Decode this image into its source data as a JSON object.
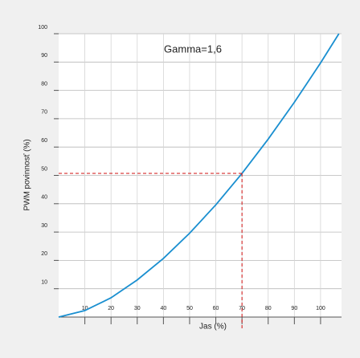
{
  "chart_data": {
    "type": "line",
    "title": "Gamma=1,6",
    "x_label": "Jas (%)",
    "y_label": "PWM povinnosť (%)",
    "x": [
      0,
      10,
      20,
      30,
      40,
      50,
      60,
      70,
      80,
      90,
      100,
      107
    ],
    "series": [
      {
        "name": "Gamma=1,6",
        "color": "#1a8fd0",
        "values": [
          0,
          2.3,
          6.8,
          13.1,
          20.7,
          29.6,
          39.6,
          50.7,
          62.8,
          75.8,
          89.7,
          100
        ]
      }
    ],
    "xlim": [
      0,
      108
    ],
    "ylim": [
      0,
      100
    ],
    "xticks": [
      10,
      20,
      30,
      40,
      50,
      60,
      70,
      80,
      90,
      100
    ],
    "yticks": [
      10,
      20,
      30,
      40,
      50,
      60,
      70,
      80,
      90,
      100
    ],
    "grid": true
  }
}
